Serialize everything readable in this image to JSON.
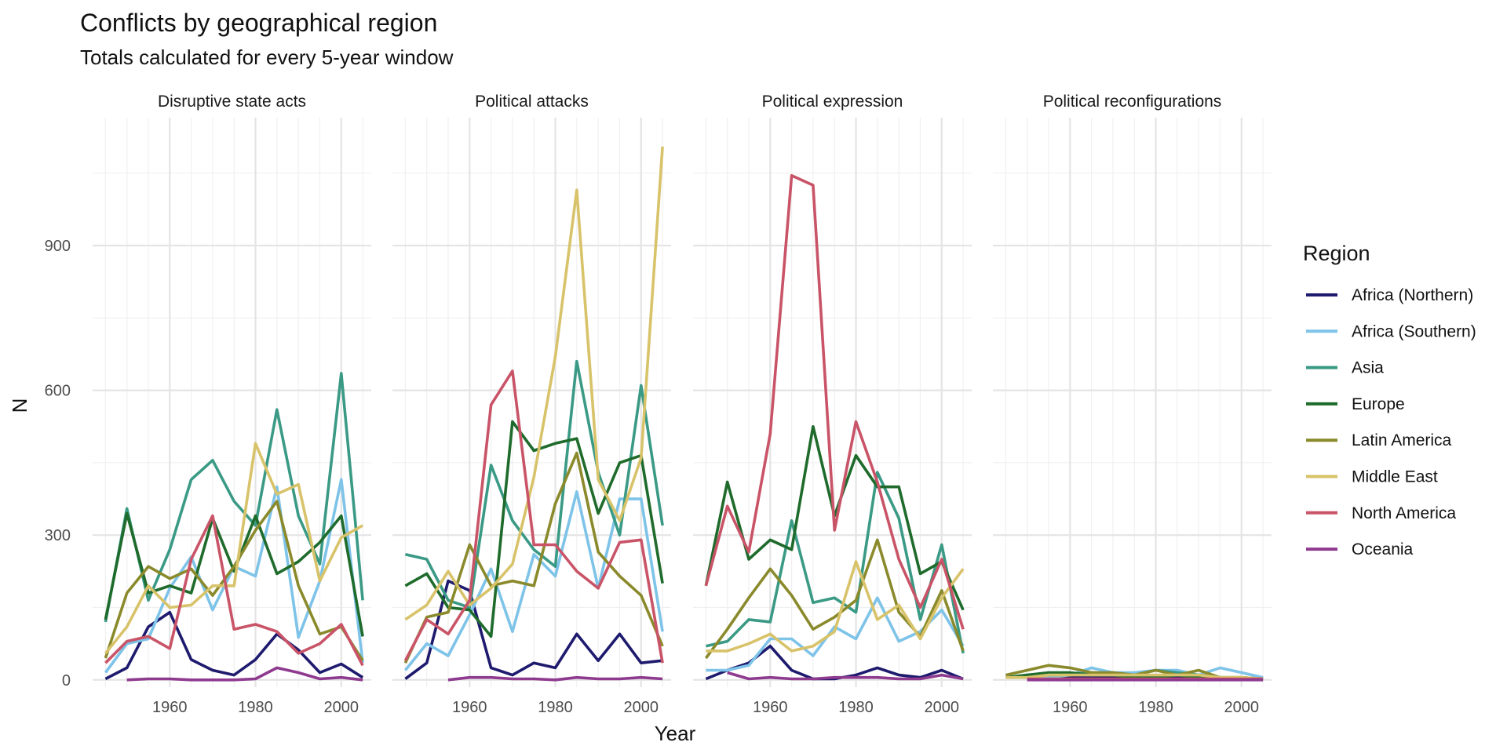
{
  "chart_data": {
    "type": "line",
    "title": "Conflicts by geographical region",
    "subtitle": "Totals calculated for every 5-year window",
    "xlabel": "Year",
    "ylabel": "N",
    "xlim": [
      1942,
      2007
    ],
    "ylim": [
      -15,
      1165
    ],
    "x_ticks": [
      1960,
      1980,
      2000
    ],
    "y_ticks": [
      0,
      300,
      600,
      900
    ],
    "grid": true,
    "legend_title": "Region",
    "legend_position": "right",
    "x": [
      1945,
      1950,
      1955,
      1960,
      1965,
      1970,
      1975,
      1980,
      1985,
      1990,
      1995,
      2000,
      2005
    ],
    "panels": [
      {
        "name": "Disruptive state acts",
        "series": [
          {
            "name": "Africa (Northern)",
            "color": "#1e1a6e",
            "values": [
              2,
              25,
              110,
              140,
              42,
              20,
              10,
              42,
              95,
              62,
              15,
              33,
              5
            ]
          },
          {
            "name": "Africa (Southern)",
            "color": "#7ec3e8",
            "values": [
              15,
              75,
              85,
              190,
              255,
              145,
              235,
              215,
              400,
              88,
              205,
              415,
              35
            ]
          },
          {
            "name": "Asia",
            "color": "#3a9a85",
            "values": [
              120,
              355,
              165,
              270,
              415,
              455,
              370,
              320,
              560,
              340,
              240,
              635,
              165
            ]
          },
          {
            "name": "Europe",
            "color": "#1f6b2c",
            "values": [
              125,
              345,
              180,
              195,
              180,
              335,
              225,
              340,
              220,
              245,
              285,
              340,
              90
            ]
          },
          {
            "name": "Latin America",
            "color": "#8a8a2c",
            "values": [
              45,
              180,
              235,
              210,
              230,
              175,
              235,
              310,
              370,
              195,
              95,
              110,
              40
            ]
          },
          {
            "name": "Middle East",
            "color": "#d8c36a",
            "values": [
              55,
              110,
              195,
              150,
              155,
              195,
              195,
              490,
              385,
              405,
              205,
              295,
              320
            ]
          },
          {
            "name": "North America",
            "color": "#c95468",
            "values": [
              35,
              80,
              90,
              65,
              250,
              340,
              105,
              115,
              100,
              55,
              75,
              115,
              30
            ]
          },
          {
            "name": "Oceania",
            "color": "#8e3a8f",
            "values": [
              null,
              0,
              2,
              2,
              0,
              0,
              0,
              2,
              25,
              15,
              2,
              5,
              0
            ]
          }
        ]
      },
      {
        "name": "Political attacks",
        "series": [
          {
            "name": "Africa (Northern)",
            "color": "#1e1a6e",
            "values": [
              2,
              35,
              205,
              185,
              25,
              10,
              35,
              25,
              95,
              40,
              95,
              35,
              40
            ]
          },
          {
            "name": "Africa (Southern)",
            "color": "#7ec3e8",
            "values": [
              20,
              75,
              50,
              135,
              230,
              100,
              260,
              215,
              390,
              190,
              375,
              375,
              100
            ]
          },
          {
            "name": "Asia",
            "color": "#3a9a85",
            "values": [
              260,
              250,
              165,
              150,
              445,
              330,
              270,
              235,
              660,
              430,
              300,
              610,
              320
            ]
          },
          {
            "name": "Europe",
            "color": "#1f6b2c",
            "values": [
              195,
              220,
              150,
              145,
              90,
              535,
              475,
              490,
              500,
              345,
              450,
              465,
              200
            ]
          },
          {
            "name": "Latin America",
            "color": "#8a8a2c",
            "values": [
              35,
              130,
              140,
              280,
              195,
              205,
              195,
              365,
              470,
              265,
              215,
              175,
              70
            ]
          },
          {
            "name": "Middle East",
            "color": "#d8c36a",
            "values": [
              125,
              155,
              225,
              155,
              190,
              240,
              420,
              670,
              1015,
              415,
              330,
              460,
              1105
            ]
          },
          {
            "name": "North America",
            "color": "#c95468",
            "values": [
              40,
              125,
              95,
              165,
              570,
              640,
              280,
              280,
              225,
              190,
              285,
              290,
              35
            ]
          },
          {
            "name": "Oceania",
            "color": "#8e3a8f",
            "values": [
              null,
              null,
              0,
              5,
              5,
              2,
              2,
              0,
              5,
              2,
              2,
              5,
              2
            ]
          }
        ]
      },
      {
        "name": "Political expression",
        "series": [
          {
            "name": "Africa (Northern)",
            "color": "#1e1a6e",
            "values": [
              2,
              20,
              35,
              70,
              20,
              2,
              2,
              10,
              25,
              10,
              5,
              20,
              2
            ]
          },
          {
            "name": "Africa (Southern)",
            "color": "#7ec3e8",
            "values": [
              20,
              20,
              30,
              85,
              85,
              50,
              110,
              85,
              170,
              80,
              100,
              145,
              70
            ]
          },
          {
            "name": "Asia",
            "color": "#3a9a85",
            "values": [
              70,
              80,
              125,
              120,
              330,
              160,
              170,
              140,
              430,
              335,
              125,
              280,
              55
            ]
          },
          {
            "name": "Europe",
            "color": "#1f6b2c",
            "values": [
              195,
              410,
              250,
              290,
              270,
              525,
              340,
              465,
              400,
              400,
              220,
              245,
              145
            ]
          },
          {
            "name": "Latin America",
            "color": "#8a8a2c",
            "values": [
              45,
              105,
              170,
              230,
              175,
              105,
              130,
              165,
              290,
              140,
              90,
              185,
              60
            ]
          },
          {
            "name": "Middle East",
            "color": "#d8c36a",
            "values": [
              60,
              60,
              75,
              95,
              60,
              70,
              100,
              245,
              125,
              155,
              85,
              170,
              230
            ]
          },
          {
            "name": "North America",
            "color": "#c95468",
            "values": [
              195,
              360,
              265,
              510,
              1045,
              1025,
              310,
              535,
              410,
              250,
              150,
              250,
              105
            ]
          },
          {
            "name": "Oceania",
            "color": "#8e3a8f",
            "values": [
              null,
              15,
              2,
              5,
              2,
              2,
              5,
              5,
              5,
              2,
              2,
              10,
              2
            ]
          }
        ]
      },
      {
        "name": "Political reconfigurations",
        "series": [
          {
            "name": "Africa (Northern)",
            "color": "#1e1a6e",
            "values": [
              null,
              2,
              2,
              5,
              5,
              5,
              2,
              2,
              5,
              2,
              2,
              2,
              0
            ]
          },
          {
            "name": "Africa (Southern)",
            "color": "#7ec3e8",
            "values": [
              null,
              5,
              5,
              10,
              25,
              15,
              15,
              20,
              20,
              10,
              25,
              15,
              5
            ]
          },
          {
            "name": "Asia",
            "color": "#3a9a85",
            "values": [
              5,
              10,
              10,
              10,
              15,
              15,
              10,
              20,
              15,
              10,
              5,
              5,
              2
            ]
          },
          {
            "name": "Europe",
            "color": "#1f6b2c",
            "values": [
              5,
              10,
              15,
              15,
              10,
              10,
              5,
              5,
              10,
              5,
              5,
              2,
              2
            ]
          },
          {
            "name": "Latin America",
            "color": "#8a8a2c",
            "values": [
              10,
              20,
              30,
              25,
              15,
              15,
              10,
              20,
              10,
              20,
              5,
              5,
              2
            ]
          },
          {
            "name": "Middle East",
            "color": "#d8c36a",
            "values": [
              5,
              5,
              10,
              10,
              10,
              10,
              10,
              10,
              10,
              10,
              5,
              5,
              2
            ]
          },
          {
            "name": "North America",
            "color": "#c95468",
            "values": [
              null,
              2,
              2,
              2,
              2,
              2,
              2,
              2,
              2,
              2,
              2,
              2,
              2
            ]
          },
          {
            "name": "Oceania",
            "color": "#8e3a8f",
            "values": [
              null,
              0,
              0,
              0,
              0,
              0,
              0,
              0,
              0,
              0,
              0,
              0,
              0
            ]
          }
        ]
      }
    ],
    "legend": [
      {
        "name": "Africa (Northern)",
        "color": "#1e1a6e"
      },
      {
        "name": "Africa (Southern)",
        "color": "#7ec3e8"
      },
      {
        "name": "Asia",
        "color": "#3a9a85"
      },
      {
        "name": "Europe",
        "color": "#1f6b2c"
      },
      {
        "name": "Latin America",
        "color": "#8a8a2c"
      },
      {
        "name": "Middle East",
        "color": "#d8c36a"
      },
      {
        "name": "North America",
        "color": "#c95468"
      },
      {
        "name": "Oceania",
        "color": "#8e3a8f"
      }
    ]
  }
}
